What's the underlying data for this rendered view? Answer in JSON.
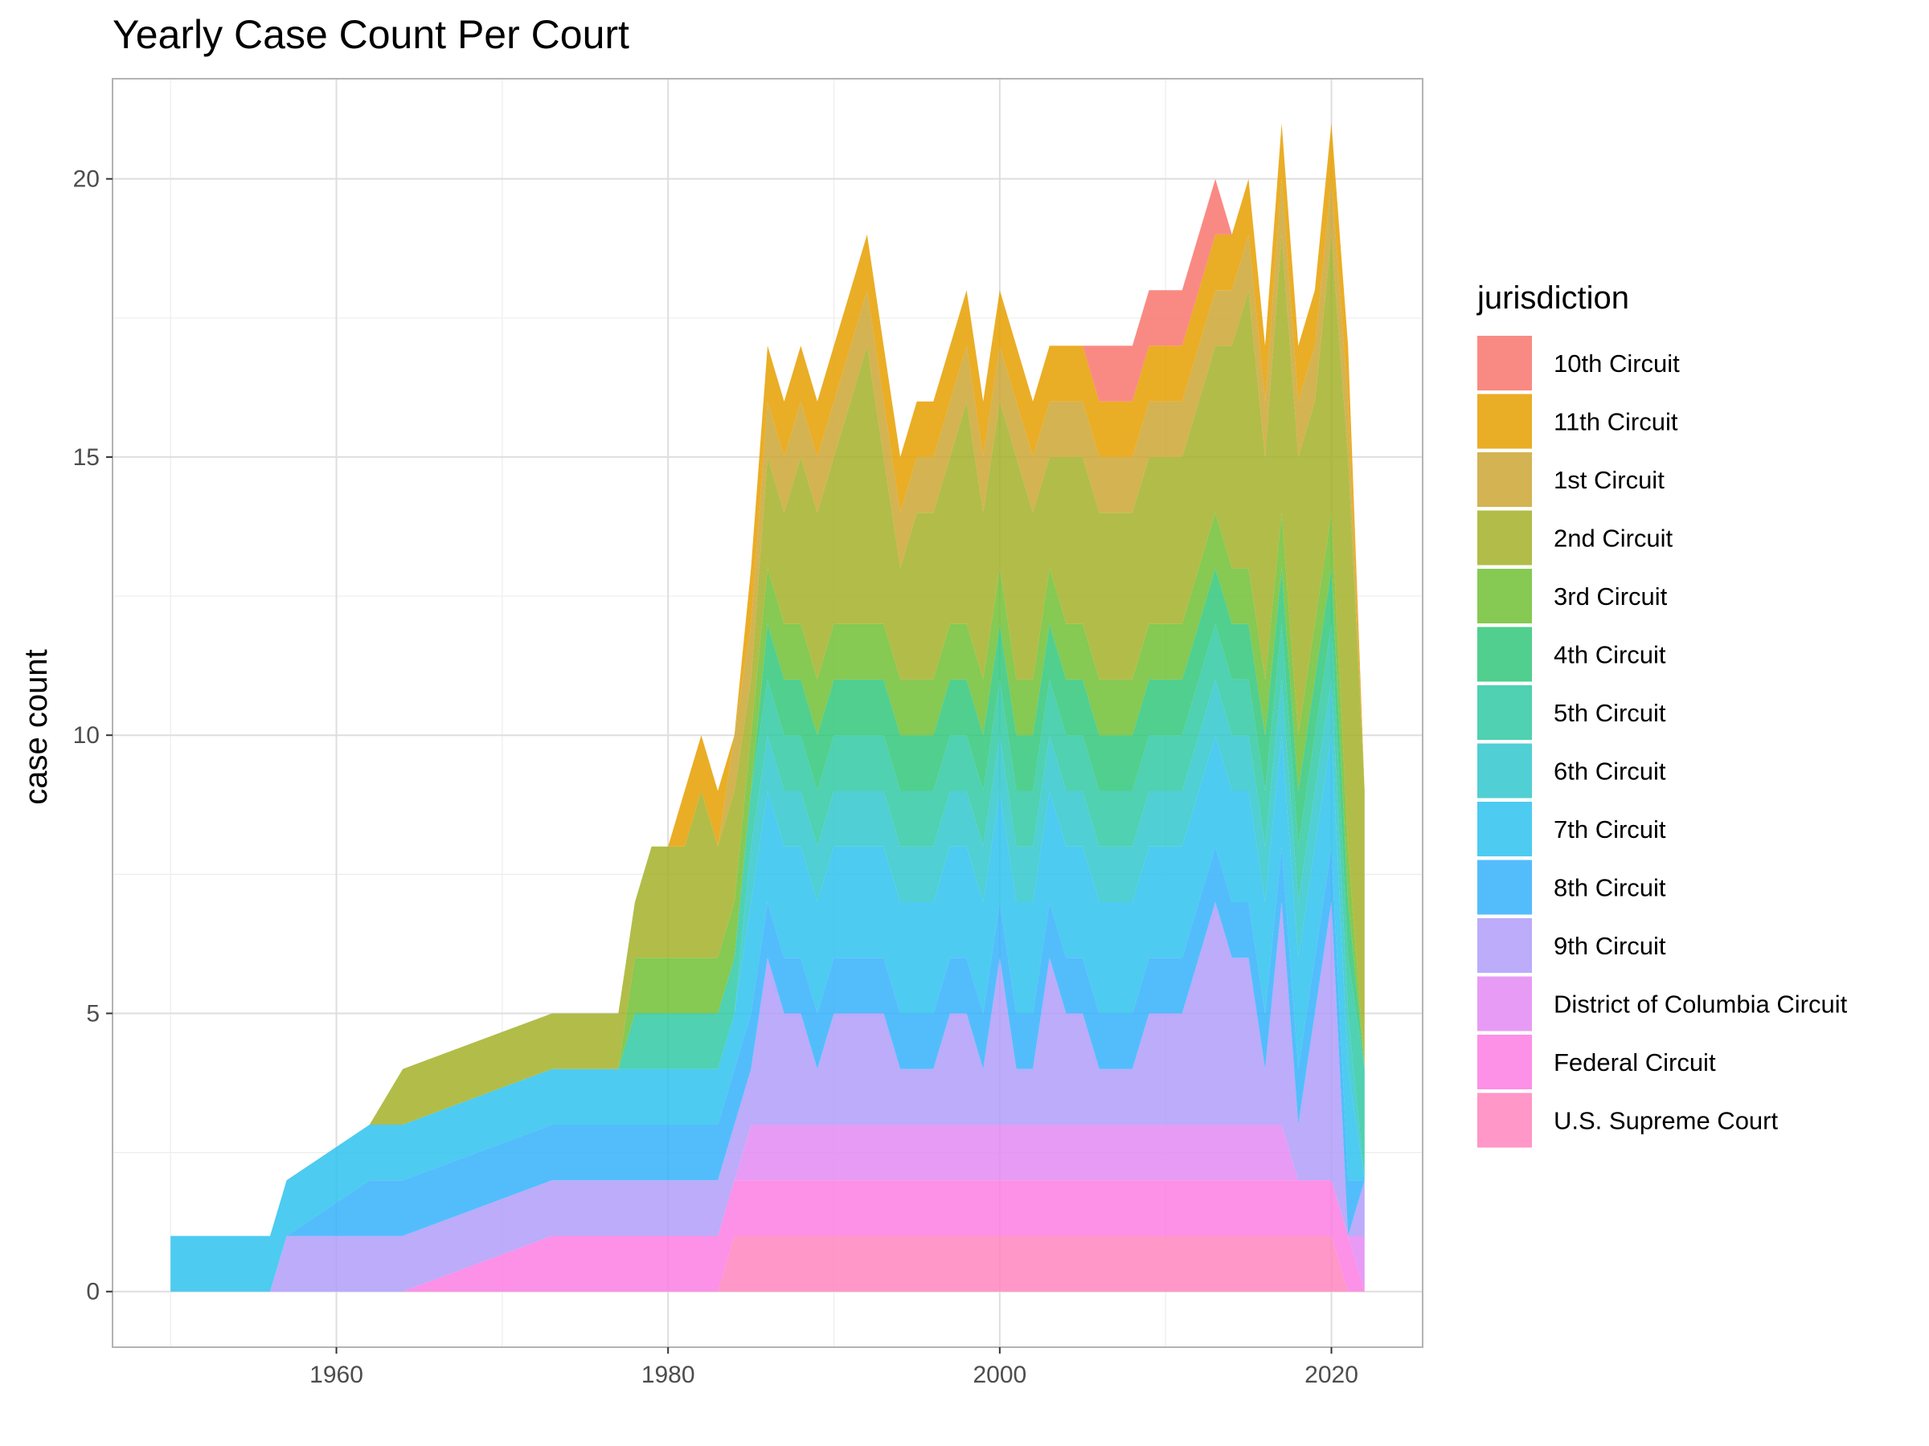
{
  "chart_data": {
    "type": "area",
    "stacked": true,
    "title": "Yearly Case Count Per Court",
    "xlabel": "",
    "ylabel": "case count",
    "xlim": [
      1946.5,
      2025.5
    ],
    "ylim": [
      -1,
      21.8
    ],
    "x_ticks": [
      1960,
      1980,
      2000,
      2020
    ],
    "y_ticks": [
      0,
      5,
      10,
      15,
      20
    ],
    "grid": true,
    "legend": {
      "title": "jurisdiction",
      "position": "right"
    },
    "stack_order_bottom_to_top": [
      "U.S. Supreme Court",
      "Federal Circuit",
      "District of Columbia Circuit",
      "9th Circuit",
      "8th Circuit",
      "7th Circuit",
      "6th Circuit",
      "5th Circuit",
      "4th Circuit",
      "3rd Circuit",
      "2nd Circuit",
      "1st Circuit",
      "11th Circuit",
      "10th Circuit"
    ],
    "x": [
      1950,
      1956,
      1957,
      1962,
      1964,
      1973,
      1977,
      1978,
      1979,
      1980,
      1981,
      1982,
      1983,
      1984,
      1985,
      1986,
      1987,
      1988,
      1989,
      1990,
      1991,
      1992,
      1993,
      1994,
      1995,
      1996,
      1997,
      1998,
      1999,
      2000,
      2001,
      2002,
      2003,
      2004,
      2005,
      2006,
      2007,
      2008,
      2009,
      2010,
      2011,
      2012,
      2013,
      2014,
      2015,
      2016,
      2017,
      2018,
      2019,
      2020,
      2021,
      2022
    ],
    "series": [
      {
        "name": "10th Circuit",
        "color": "#F8766D",
        "values": [
          0,
          0,
          0,
          0,
          0,
          0,
          0,
          0,
          0,
          0,
          0,
          0,
          0,
          0,
          0,
          0,
          0,
          0,
          0,
          0,
          0,
          0,
          0,
          0,
          0,
          0,
          0,
          0,
          0,
          0,
          0,
          0,
          0,
          0,
          0,
          1,
          1,
          1,
          1,
          1,
          1,
          1,
          1,
          0,
          0,
          0,
          0,
          0,
          0,
          0,
          0,
          0
        ]
      },
      {
        "name": "11th Circuit",
        "color": "#E69F00",
        "values": [
          0,
          0,
          0,
          0,
          0,
          0,
          0,
          0,
          0,
          0,
          1,
          1,
          1,
          0,
          1,
          1,
          1,
          1,
          1,
          1,
          1,
          1,
          1,
          1,
          1,
          1,
          1,
          1,
          1,
          1,
          1,
          1,
          1,
          1,
          1,
          1,
          1,
          1,
          1,
          1,
          1,
          1,
          1,
          1,
          1,
          1,
          1,
          1,
          1,
          1,
          1,
          0
        ]
      },
      {
        "name": "1st Circuit",
        "color": "#CDA634",
        "values": [
          0,
          0,
          0,
          0,
          0,
          0,
          0,
          0,
          0,
          0,
          0,
          0,
          0,
          1,
          1,
          1,
          1,
          1,
          1,
          1,
          1,
          1,
          1,
          1,
          1,
          1,
          1,
          1,
          1,
          1,
          1,
          1,
          1,
          1,
          1,
          1,
          1,
          1,
          1,
          1,
          1,
          1,
          1,
          1,
          1,
          1,
          1,
          1,
          1,
          1,
          1,
          0
        ]
      },
      {
        "name": "2nd Circuit",
        "color": "#A3B128",
        "values": [
          0,
          0,
          0,
          0,
          1,
          1,
          1,
          1,
          2,
          2,
          2,
          3,
          2,
          2,
          1,
          2,
          2,
          3,
          3,
          3,
          4,
          5,
          3,
          2,
          3,
          3,
          3,
          4,
          3,
          3,
          4,
          3,
          2,
          3,
          3,
          3,
          3,
          3,
          3,
          3,
          3,
          3,
          3,
          4,
          5,
          4,
          5,
          5,
          4,
          5,
          7,
          5
        ]
      },
      {
        "name": "3rd Circuit",
        "color": "#71BF35",
        "values": [
          0,
          0,
          0,
          0,
          0,
          0,
          0,
          1,
          1,
          1,
          1,
          1,
          1,
          1,
          1,
          1,
          1,
          1,
          1,
          1,
          1,
          1,
          1,
          1,
          1,
          1,
          1,
          1,
          1,
          1,
          1,
          1,
          1,
          1,
          1,
          1,
          1,
          1,
          1,
          1,
          1,
          1,
          1,
          1,
          1,
          1,
          1,
          1,
          1,
          1,
          1,
          0
        ]
      },
      {
        "name": "4th Circuit",
        "color": "#33C77A",
        "values": [
          0,
          0,
          0,
          0,
          0,
          0,
          0,
          0,
          0,
          0,
          0,
          0,
          0,
          0,
          0,
          1,
          1,
          1,
          1,
          1,
          1,
          1,
          1,
          1,
          1,
          1,
          1,
          1,
          1,
          1,
          1,
          1,
          1,
          1,
          1,
          1,
          1,
          1,
          1,
          1,
          1,
          1,
          1,
          1,
          1,
          1,
          1,
          1,
          1,
          1,
          1,
          0
        ]
      },
      {
        "name": "5th Circuit",
        "color": "#30C9A5",
        "values": [
          0,
          0,
          0,
          0,
          0,
          0,
          0,
          1,
          1,
          1,
          1,
          1,
          1,
          1,
          1,
          1,
          1,
          1,
          1,
          1,
          1,
          1,
          1,
          1,
          1,
          1,
          1,
          1,
          1,
          1,
          1,
          1,
          1,
          1,
          1,
          1,
          1,
          1,
          1,
          1,
          1,
          1,
          1,
          1,
          1,
          1,
          1,
          1,
          1,
          1,
          1,
          2
        ]
      },
      {
        "name": "6th Circuit",
        "color": "#31C7CC",
        "values": [
          0,
          0,
          0,
          0,
          0,
          0,
          0,
          0,
          0,
          0,
          0,
          0,
          0,
          0,
          1,
          1,
          1,
          1,
          1,
          1,
          1,
          1,
          1,
          1,
          1,
          1,
          1,
          1,
          1,
          1,
          1,
          1,
          1,
          1,
          1,
          1,
          1,
          1,
          1,
          1,
          1,
          1,
          1,
          1,
          1,
          1,
          1,
          1,
          1,
          1,
          1,
          0
        ]
      },
      {
        "name": "7th Circuit",
        "color": "#2EC2EE",
        "values": [
          1,
          1,
          1,
          1,
          1,
          1,
          1,
          1,
          1,
          1,
          1,
          1,
          1,
          1,
          2,
          2,
          2,
          2,
          2,
          2,
          2,
          2,
          2,
          2,
          2,
          2,
          2,
          2,
          2,
          2,
          2,
          2,
          2,
          2,
          2,
          2,
          2,
          2,
          2,
          2,
          2,
          2,
          2,
          2,
          2,
          2,
          2,
          2,
          2,
          2,
          2,
          0
        ]
      },
      {
        "name": "8th Circuit",
        "color": "#35B2FC",
        "values": [
          0,
          0,
          0,
          1,
          1,
          1,
          1,
          1,
          1,
          1,
          1,
          1,
          1,
          1,
          1,
          1,
          1,
          1,
          1,
          1,
          1,
          1,
          1,
          1,
          1,
          1,
          1,
          1,
          1,
          1,
          1,
          1,
          1,
          1,
          1,
          1,
          1,
          1,
          1,
          1,
          1,
          1,
          1,
          1,
          1,
          1,
          1,
          1,
          1,
          1,
          1,
          0
        ]
      },
      {
        "name": "9th Circuit",
        "color": "#B09EF9",
        "values": [
          0,
          0,
          1,
          1,
          1,
          1,
          1,
          1,
          1,
          1,
          1,
          1,
          1,
          1,
          1,
          3,
          2,
          2,
          1,
          2,
          2,
          2,
          2,
          1,
          1,
          1,
          2,
          2,
          1,
          3,
          1,
          1,
          3,
          2,
          2,
          1,
          1,
          1,
          2,
          2,
          2,
          3,
          4,
          3,
          3,
          1,
          4,
          1,
          3,
          5,
          0,
          1
        ]
      },
      {
        "name": "District of Columbia Circuit",
        "color": "#E389F3",
        "values": [
          0,
          0,
          0,
          0,
          0,
          0,
          0,
          0,
          0,
          0,
          0,
          0,
          0,
          0,
          1,
          1,
          1,
          1,
          1,
          1,
          1,
          1,
          1,
          1,
          1,
          1,
          1,
          1,
          1,
          1,
          1,
          1,
          1,
          1,
          1,
          1,
          1,
          1,
          1,
          1,
          1,
          1,
          1,
          1,
          1,
          1,
          1,
          0,
          0,
          0,
          0,
          1
        ]
      },
      {
        "name": "Federal Circuit",
        "color": "#FD7CE3",
        "values": [
          0,
          0,
          0,
          0,
          0,
          1,
          1,
          1,
          1,
          1,
          1,
          1,
          1,
          1,
          1,
          1,
          1,
          1,
          1,
          1,
          1,
          1,
          1,
          1,
          1,
          1,
          1,
          1,
          1,
          1,
          1,
          1,
          1,
          1,
          1,
          1,
          1,
          1,
          1,
          1,
          1,
          1,
          1,
          1,
          1,
          1,
          1,
          1,
          1,
          1,
          1,
          0
        ]
      },
      {
        "name": "U.S. Supreme Court",
        "color": "#FF85BE",
        "values": [
          0,
          0,
          0,
          0,
          0,
          0,
          0,
          0,
          0,
          0,
          0,
          0,
          0,
          1,
          1,
          1,
          1,
          1,
          1,
          1,
          1,
          1,
          1,
          1,
          1,
          1,
          1,
          1,
          1,
          1,
          1,
          1,
          1,
          1,
          1,
          1,
          1,
          1,
          1,
          1,
          1,
          1,
          1,
          1,
          1,
          1,
          1,
          1,
          1,
          1,
          0,
          0
        ]
      }
    ]
  }
}
